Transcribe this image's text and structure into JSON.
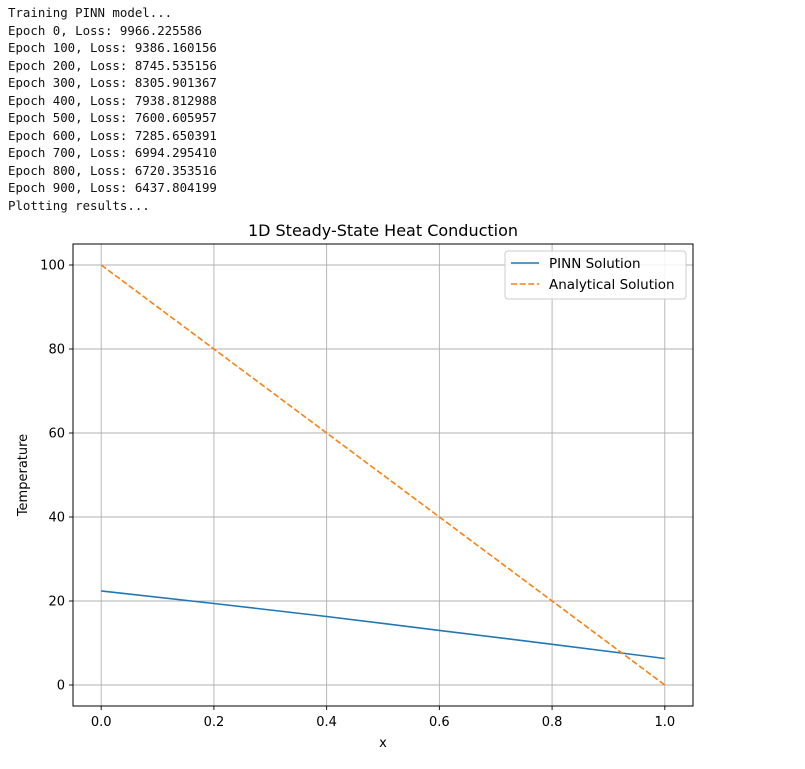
{
  "console": {
    "lines": [
      "Training PINN model...",
      "Epoch 0, Loss: 9966.225586",
      "Epoch 100, Loss: 9386.160156",
      "Epoch 200, Loss: 8745.535156",
      "Epoch 300, Loss: 8305.901367",
      "Epoch 400, Loss: 7938.812988",
      "Epoch 500, Loss: 7600.605957",
      "Epoch 600, Loss: 7285.650391",
      "Epoch 700, Loss: 6994.295410",
      "Epoch 800, Loss: 6720.353516",
      "Epoch 900, Loss: 6437.804199",
      "Plotting results..."
    ]
  },
  "chart_data": {
    "type": "line",
    "title": "1D Steady-State Heat Conduction",
    "xlabel": "x",
    "ylabel": "Temperature",
    "xlim": [
      -0.05,
      1.05
    ],
    "ylim": [
      -5,
      105
    ],
    "xticks": [
      0.0,
      0.2,
      0.4,
      0.6,
      0.8,
      1.0
    ],
    "xtick_labels": [
      "0.0",
      "0.2",
      "0.4",
      "0.6",
      "0.8",
      "1.0"
    ],
    "yticks": [
      0,
      20,
      40,
      60,
      80,
      100
    ],
    "ytick_labels": [
      "0",
      "20",
      "40",
      "60",
      "80",
      "100"
    ],
    "grid": true,
    "legend_position": "top-right",
    "series": [
      {
        "name": "PINN Solution",
        "color": "#1f77b4",
        "style": "solid",
        "x": [
          0.0,
          0.2,
          0.4,
          0.6,
          0.8,
          1.0
        ],
        "y": [
          22.4,
          19.4,
          16.3,
          13.0,
          9.7,
          6.3
        ]
      },
      {
        "name": "Analytical Solution",
        "color": "#ff7f0e",
        "style": "dashed",
        "x": [
          0.0,
          1.0
        ],
        "y": [
          100,
          0
        ]
      }
    ]
  }
}
